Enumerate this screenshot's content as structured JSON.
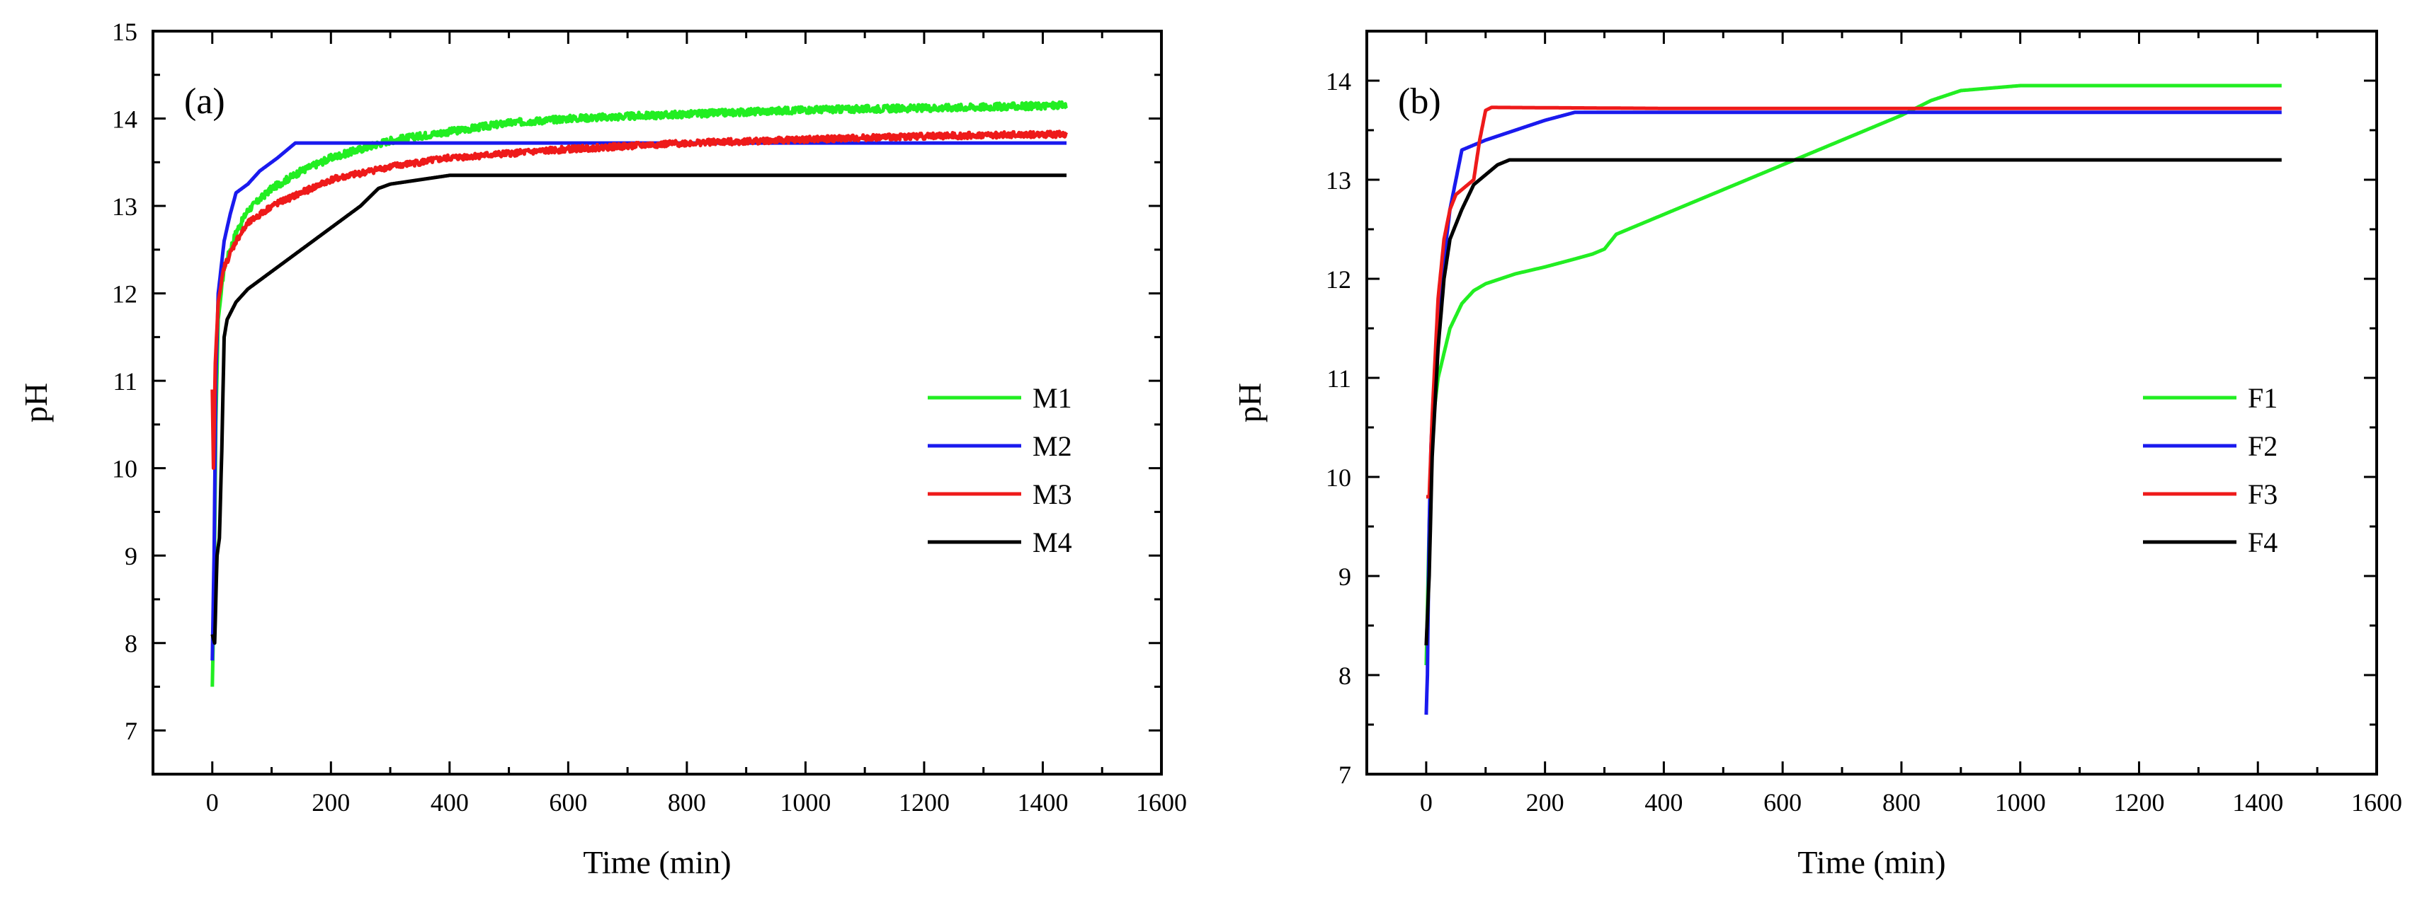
{
  "chart_data": [
    {
      "type": "line",
      "panel_label": "(a)",
      "xlabel": "Time (min)",
      "ylabel": "pH",
      "xlim": [
        -100,
        1600
      ],
      "ylim": [
        6.5,
        15
      ],
      "xticks": [
        "0",
        "200",
        "400",
        "600",
        "800",
        "1000",
        "1200",
        "1400",
        "1600"
      ],
      "yticks": [
        "7",
        "8",
        "9",
        "10",
        "11",
        "12",
        "13",
        "14",
        "15"
      ],
      "legend_position": "right",
      "series": [
        {
          "name": "M1",
          "color": "#22ee22",
          "noise": 0.04,
          "points": [
            [
              0,
              7.5
            ],
            [
              3,
              8.5
            ],
            [
              6,
              10.5
            ],
            [
              10,
              11.7
            ],
            [
              20,
              12.3
            ],
            [
              40,
              12.7
            ],
            [
              60,
              12.95
            ],
            [
              100,
              13.2
            ],
            [
              150,
              13.4
            ],
            [
              200,
              13.55
            ],
            [
              300,
              13.75
            ],
            [
              400,
              13.85
            ],
            [
              500,
              13.95
            ],
            [
              600,
              14.0
            ],
            [
              800,
              14.05
            ],
            [
              1000,
              14.1
            ],
            [
              1200,
              14.12
            ],
            [
              1440,
              14.15
            ]
          ]
        },
        {
          "name": "M2",
          "color": "#1a1aee",
          "noise": 0,
          "points": [
            [
              0,
              7.8
            ],
            [
              3,
              9.0
            ],
            [
              6,
              11.0
            ],
            [
              10,
              12.0
            ],
            [
              20,
              12.6
            ],
            [
              30,
              12.9
            ],
            [
              40,
              13.15
            ],
            [
              60,
              13.25
            ],
            [
              80,
              13.4
            ],
            [
              110,
              13.55
            ],
            [
              140,
              13.72
            ],
            [
              400,
              13.72
            ],
            [
              700,
              13.72
            ],
            [
              1000,
              13.72
            ],
            [
              1440,
              13.72
            ]
          ]
        },
        {
          "name": "M3",
          "color": "#ee1a1a",
          "noise": 0.035,
          "points": [
            [
              0,
              10.9
            ],
            [
              2,
              10.0
            ],
            [
              5,
              11.2
            ],
            [
              10,
              11.9
            ],
            [
              20,
              12.3
            ],
            [
              40,
              12.6
            ],
            [
              60,
              12.8
            ],
            [
              100,
              13.0
            ],
            [
              150,
              13.15
            ],
            [
              200,
              13.3
            ],
            [
              300,
              13.45
            ],
            [
              400,
              13.55
            ],
            [
              500,
              13.6
            ],
            [
              600,
              13.65
            ],
            [
              800,
              13.72
            ],
            [
              1000,
              13.76
            ],
            [
              1200,
              13.8
            ],
            [
              1440,
              13.82
            ]
          ]
        },
        {
          "name": "M4",
          "color": "#000000",
          "noise": 0,
          "points": [
            [
              0,
              8.1
            ],
            [
              4,
              8.0
            ],
            [
              8,
              9.0
            ],
            [
              12,
              9.2
            ],
            [
              16,
              10.2
            ],
            [
              20,
              11.5
            ],
            [
              25,
              11.7
            ],
            [
              40,
              11.9
            ],
            [
              60,
              12.05
            ],
            [
              100,
              12.25
            ],
            [
              150,
              12.5
            ],
            [
              200,
              12.75
            ],
            [
              250,
              13.0
            ],
            [
              280,
              13.2
            ],
            [
              300,
              13.25
            ],
            [
              350,
              13.3
            ],
            [
              400,
              13.35
            ],
            [
              1440,
              13.35
            ]
          ]
        }
      ]
    },
    {
      "type": "line",
      "panel_label": "(b)",
      "xlabel": "Time (min)",
      "ylabel": "pH",
      "xlim": [
        -100,
        1600
      ],
      "ylim": [
        7,
        14.5
      ],
      "xticks": [
        "0",
        "200",
        "400",
        "600",
        "800",
        "1000",
        "1200",
        "1400",
        "1600"
      ],
      "yticks": [
        "7",
        "8",
        "9",
        "10",
        "11",
        "12",
        "13",
        "14"
      ],
      "legend_position": "right",
      "series": [
        {
          "name": "F1",
          "color": "#22ee22",
          "noise": 0,
          "points": [
            [
              0,
              8.1
            ],
            [
              5,
              9.5
            ],
            [
              10,
              10.5
            ],
            [
              20,
              11.0
            ],
            [
              40,
              11.5
            ],
            [
              60,
              11.75
            ],
            [
              80,
              11.88
            ],
            [
              100,
              11.95
            ],
            [
              150,
              12.05
            ],
            [
              200,
              12.12
            ],
            [
              250,
              12.2
            ],
            [
              280,
              12.25
            ],
            [
              300,
              12.3
            ],
            [
              320,
              12.45
            ],
            [
              400,
              12.65
            ],
            [
              500,
              12.9
            ],
            [
              600,
              13.15
            ],
            [
              700,
              13.4
            ],
            [
              800,
              13.65
            ],
            [
              850,
              13.8
            ],
            [
              900,
              13.9
            ],
            [
              1000,
              13.95
            ],
            [
              1440,
              13.95
            ]
          ]
        },
        {
          "name": "F2",
          "color": "#1a1aee",
          "noise": 0,
          "points": [
            [
              0,
              7.6
            ],
            [
              2,
              8.0
            ],
            [
              5,
              9.5
            ],
            [
              8,
              10.3
            ],
            [
              12,
              10.8
            ],
            [
              20,
              11.5
            ],
            [
              30,
              12.2
            ],
            [
              40,
              12.7
            ],
            [
              50,
              13.0
            ],
            [
              60,
              13.3
            ],
            [
              80,
              13.35
            ],
            [
              100,
              13.4
            ],
            [
              150,
              13.5
            ],
            [
              200,
              13.6
            ],
            [
              250,
              13.68
            ],
            [
              1440,
              13.68
            ]
          ]
        },
        {
          "name": "F3",
          "color": "#ee1a1a",
          "noise": 0,
          "points": [
            [
              0,
              9.8
            ],
            [
              5,
              9.8
            ],
            [
              10,
              10.6
            ],
            [
              20,
              11.8
            ],
            [
              30,
              12.4
            ],
            [
              40,
              12.7
            ],
            [
              50,
              12.85
            ],
            [
              60,
              12.9
            ],
            [
              80,
              13.0
            ],
            [
              90,
              13.4
            ],
            [
              100,
              13.7
            ],
            [
              110,
              13.73
            ],
            [
              400,
              13.72
            ],
            [
              1440,
              13.72
            ]
          ]
        },
        {
          "name": "F4",
          "color": "#000000",
          "noise": 0,
          "points": [
            [
              0,
              8.3
            ],
            [
              5,
              9.0
            ],
            [
              10,
              10.2
            ],
            [
              20,
              11.3
            ],
            [
              30,
              12.0
            ],
            [
              40,
              12.4
            ],
            [
              60,
              12.7
            ],
            [
              80,
              12.95
            ],
            [
              100,
              13.05
            ],
            [
              120,
              13.15
            ],
            [
              140,
              13.2
            ],
            [
              1440,
              13.2
            ]
          ]
        }
      ]
    }
  ]
}
